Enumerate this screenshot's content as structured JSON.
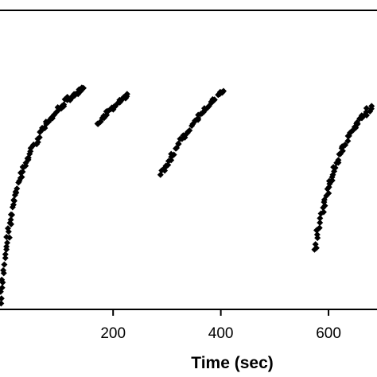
{
  "chart_data": {
    "type": "scatter",
    "title": "",
    "xlabel": "Time (sec)",
    "ylabel": "",
    "xlim": [
      -10,
      690
    ],
    "ylim": [
      0,
      1
    ],
    "grid": false,
    "legend": "none",
    "marker_color": "#000000",
    "x_ticks": [
      {
        "value": 200,
        "label": "200"
      },
      {
        "value": 400,
        "label": "400"
      },
      {
        "value": 600,
        "label": "600"
      }
    ],
    "series": [
      {
        "segments": [
          {
            "points": [
              [
                -8,
                0.02
              ],
              [
                -5,
                0.09
              ],
              [
                -2,
                0.15
              ],
              [
                2,
                0.21
              ],
              [
                6,
                0.26
              ],
              [
                10,
                0.3
              ],
              [
                15,
                0.35
              ],
              [
                20,
                0.39
              ],
              [
                26,
                0.43
              ],
              [
                32,
                0.46
              ],
              [
                38,
                0.49
              ],
              [
                45,
                0.52
              ],
              [
                52,
                0.55
              ],
              [
                60,
                0.57
              ],
              [
                68,
                0.6
              ],
              [
                76,
                0.62
              ],
              [
                85,
                0.64
              ],
              [
                95,
                0.66
              ],
              [
                105,
                0.68
              ],
              [
                115,
                0.7
              ],
              [
                125,
                0.71
              ],
              [
                135,
                0.72
              ],
              [
                140,
                0.73
              ],
              [
                145,
                0.74
              ]
            ]
          },
          {
            "points": [
              [
                172,
                0.62
              ],
              [
                180,
                0.64
              ],
              [
                188,
                0.65
              ],
              [
                196,
                0.67
              ],
              [
                204,
                0.68
              ],
              [
                212,
                0.7
              ],
              [
                220,
                0.71
              ],
              [
                226,
                0.72
              ]
            ]
          },
          {
            "points": [
              [
                288,
                0.45
              ],
              [
                298,
                0.48
              ],
              [
                308,
                0.51
              ],
              [
                318,
                0.54
              ],
              [
                328,
                0.57
              ],
              [
                338,
                0.59
              ],
              [
                348,
                0.62
              ],
              [
                358,
                0.64
              ],
              [
                368,
                0.66
              ],
              [
                378,
                0.68
              ],
              [
                388,
                0.7
              ],
              [
                398,
                0.72
              ],
              [
                405,
                0.73
              ]
            ]
          },
          {
            "points": [
              [
                574,
                0.2
              ],
              [
                579,
                0.25
              ],
              [
                584,
                0.29
              ],
              [
                590,
                0.34
              ],
              [
                596,
                0.38
              ],
              [
                602,
                0.42
              ],
              [
                608,
                0.45
              ],
              [
                615,
                0.49
              ],
              [
                622,
                0.52
              ],
              [
                630,
                0.55
              ],
              [
                638,
                0.58
              ],
              [
                646,
                0.6
              ],
              [
                654,
                0.62
              ],
              [
                662,
                0.64
              ],
              [
                670,
                0.66
              ],
              [
                680,
                0.68
              ]
            ]
          }
        ]
      }
    ]
  }
}
